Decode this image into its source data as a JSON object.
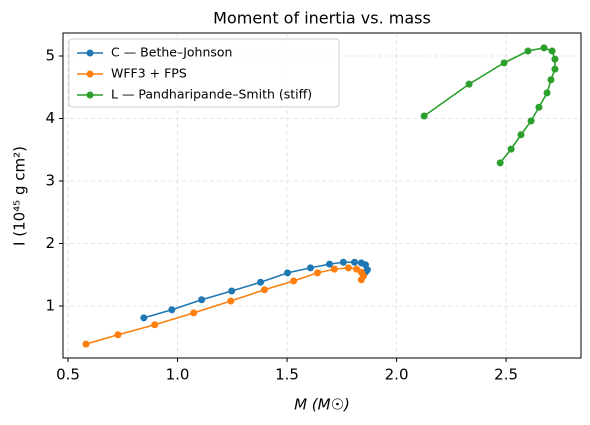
{
  "chart_data": {
    "type": "line",
    "title": "Moment of inertia vs. mass",
    "x_label": "M (M☉)",
    "y_label": "I (10⁴⁵ g cm²)",
    "xlim": [
      0.477,
      2.842
    ],
    "ylim": [
      0.168,
      5.368
    ],
    "xticks": [
      0.5,
      {
        "value": 1,
        "label": "1.0"
      },
      1.5,
      {
        "value": 2,
        "label": "2.0"
      },
      2.5
    ],
    "yticks": [
      1,
      2,
      3,
      4,
      5
    ],
    "grid": true,
    "legend": "upper left",
    "series": [
      {
        "name": "C — Bethe–Johnson",
        "color": "#1f77b4",
        "x": [
          0.846,
          0.974,
          1.11,
          1.247,
          1.379,
          1.502,
          1.607,
          1.694,
          1.757,
          1.808,
          1.839,
          1.858,
          1.867,
          1.858
        ],
        "values": [
          0.81,
          0.94,
          1.1,
          1.24,
          1.38,
          1.53,
          1.61,
          1.67,
          1.7,
          1.7,
          1.69,
          1.66,
          1.58,
          1.54
        ]
      },
      {
        "name": "WFF3 + FPS",
        "color": "#ff7f0e",
        "x": [
          0.582,
          0.728,
          0.896,
          1.074,
          1.243,
          1.397,
          1.53,
          1.639,
          1.716,
          1.78,
          1.817,
          1.839,
          1.849,
          1.839
        ],
        "values": [
          0.39,
          0.54,
          0.7,
          0.89,
          1.08,
          1.26,
          1.4,
          1.53,
          1.59,
          1.61,
          1.59,
          1.54,
          1.48,
          1.42
        ]
      },
      {
        "name": "L — Pandharipande–Smith (stiff)",
        "color": "#2ca02c",
        "x": [
          2.126,
          2.331,
          2.491,
          2.6,
          2.673,
          2.71,
          2.723,
          2.723,
          2.705,
          2.687,
          2.65,
          2.614,
          2.568,
          2.523,
          2.473
        ],
        "values": [
          4.04,
          4.55,
          4.89,
          5.08,
          5.13,
          5.08,
          4.95,
          4.79,
          4.62,
          4.41,
          4.18,
          3.96,
          3.74,
          3.51,
          3.29
        ]
      }
    ]
  }
}
